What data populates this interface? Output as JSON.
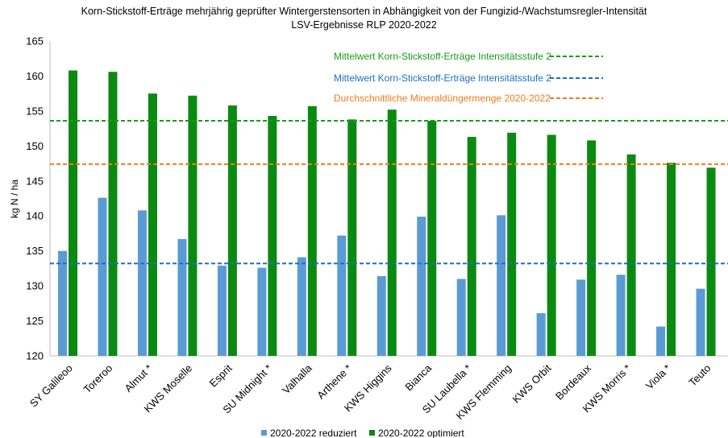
{
  "chart_data": {
    "type": "bar",
    "title": "Korn-Stickstoff-Erträge mehrjährig geprüfter Wintergerstensorten in Abhängigkeit von der Fungizid-/Wachstumsregler-Intensität",
    "subtitle": "LSV-Ergebnisse RLP 2020-2022",
    "xlabel": "",
    "ylabel": "kg N / ha",
    "ylim": [
      120,
      165
    ],
    "yticks": [
      120,
      125,
      130,
      135,
      140,
      145,
      150,
      155,
      160,
      165
    ],
    "categories": [
      "SY Galileoo",
      "Toreroo",
      "Almut *",
      "KWS Moselle",
      "Esprit",
      "SU Midnight *",
      "Valhalla",
      "Arthene *",
      "KWS Higgins",
      "Bianca",
      "SU Laubella *",
      "KWS Flemming",
      "KWS Orbit",
      "Bordeaux",
      "KWS Morris *",
      "Viola *",
      "Teuto"
    ],
    "series": [
      {
        "name": "2020-2022 reduziert",
        "color": "#5b9bd5",
        "values": [
          135.0,
          142.6,
          140.8,
          136.7,
          132.9,
          132.6,
          134.1,
          137.2,
          131.4,
          139.9,
          131.0,
          140.1,
          126.1,
          130.9,
          131.6,
          124.2,
          129.6
        ]
      },
      {
        "name": "2020-2022 optimiert",
        "color": "#0b8a12",
        "values": [
          160.8,
          160.6,
          157.5,
          157.2,
          155.8,
          154.3,
          155.7,
          153.8,
          155.2,
          153.6,
          151.3,
          151.9,
          151.6,
          150.8,
          148.8,
          147.6,
          146.9
        ]
      }
    ],
    "reference_lines": [
      {
        "label": "Mittelwert Korn-Stickstoff-Erträge Intensitätsstufe 2",
        "value": 153.6,
        "color": "#1a9a1a"
      },
      {
        "label": "Mittelwert Korn-Stickstoff-Erträge Intensitätsstufe 2",
        "value": 133.2,
        "color": "#1f6fc0"
      },
      {
        "label": "Durchschnittliche Mineraldüngermenge 2020-2022",
        "value": 147.4,
        "color": "#f07c1c"
      }
    ],
    "legend": "bottom",
    "grid": false
  }
}
